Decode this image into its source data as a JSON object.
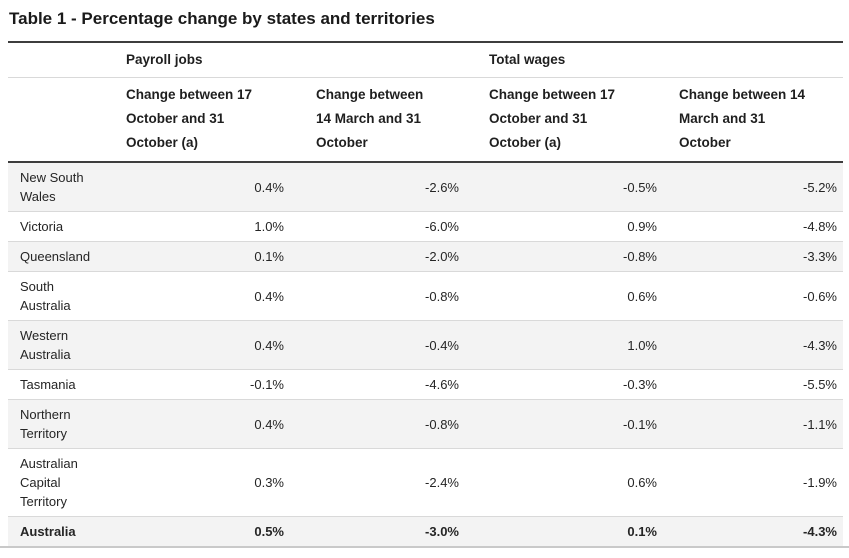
{
  "title": "Table 1 - Percentage change by states and territories",
  "table": {
    "groups": [
      {
        "label": "Payroll jobs"
      },
      {
        "label": "Total wages"
      }
    ],
    "column_headers": [
      "Change between 17\nOctober and 31\nOctober (a)",
      "Change between\n14 March and 31\nOctober",
      "Change between 17\nOctober and 31\nOctober (a)",
      "Change between 14\nMarch and 31\nOctober"
    ],
    "rows": [
      {
        "name": "New South Wales",
        "values": [
          "0.4%",
          "-2.6%",
          "-0.5%",
          "-5.2%"
        ]
      },
      {
        "name": "Victoria",
        "values": [
          "1.0%",
          "-6.0%",
          "0.9%",
          "-4.8%"
        ]
      },
      {
        "name": "Queensland",
        "values": [
          "0.1%",
          "-2.0%",
          "-0.8%",
          "-3.3%"
        ]
      },
      {
        "name": "South Australia",
        "values": [
          "0.4%",
          "-0.8%",
          "0.6%",
          "-0.6%"
        ]
      },
      {
        "name": "Western Australia",
        "values": [
          "0.4%",
          "-0.4%",
          "1.0%",
          "-4.3%"
        ]
      },
      {
        "name": "Tasmania",
        "values": [
          "-0.1%",
          "-4.6%",
          "-0.3%",
          "-5.5%"
        ]
      },
      {
        "name": "Northern Territory",
        "values": [
          "0.4%",
          "-0.8%",
          "-0.1%",
          "-1.1%"
        ]
      },
      {
        "name": "Australian Capital Territory",
        "values": [
          "0.3%",
          "-2.4%",
          "0.6%",
          "-1.9%"
        ]
      },
      {
        "name": "Australia",
        "values": [
          "0.5%",
          "-3.0%",
          "0.1%",
          "-4.3%"
        ]
      }
    ],
    "colors": {
      "stripe": "#f3f3f3",
      "border_dark": "#3d3d3d",
      "border_light": "#d9d9d9",
      "bottom_rule": "#c9c9c9",
      "text": "#252525"
    }
  },
  "chart_data": {
    "type": "table",
    "title": "Table 1 - Percentage change by states and territories",
    "column_groups": [
      "Payroll jobs",
      "Total wages"
    ],
    "columns": [
      "Payroll jobs - Change between 17 October and 31 October (a)",
      "Payroll jobs - Change between 14 March and 31 October",
      "Total wages - Change between 17 October and 31 October (a)",
      "Total wages - Change between 14 March and 31 October"
    ],
    "categories": [
      "New South Wales",
      "Victoria",
      "Queensland",
      "South Australia",
      "Western Australia",
      "Tasmania",
      "Northern Territory",
      "Australian Capital Territory",
      "Australia"
    ],
    "values_percent": [
      [
        0.4,
        -2.6,
        -0.5,
        -5.2
      ],
      [
        1.0,
        -6.0,
        0.9,
        -4.8
      ],
      [
        0.1,
        -2.0,
        -0.8,
        -3.3
      ],
      [
        0.4,
        -0.8,
        0.6,
        -0.6
      ],
      [
        0.4,
        -0.4,
        1.0,
        -4.3
      ],
      [
        -0.1,
        -4.6,
        -0.3,
        -5.5
      ],
      [
        0.4,
        -0.8,
        -0.1,
        -1.1
      ],
      [
        0.3,
        -2.4,
        0.6,
        -1.9
      ],
      [
        0.5,
        -3.0,
        0.1,
        -4.3
      ]
    ],
    "units": "%"
  }
}
